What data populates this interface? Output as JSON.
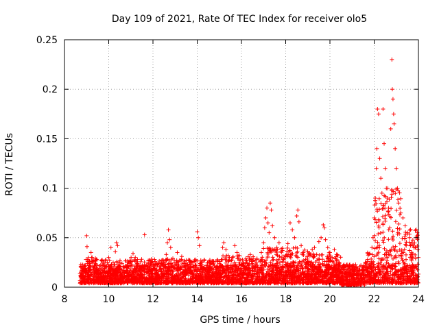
{
  "chart_data": {
    "type": "scatter",
    "title": "Day 109 of 2021, Rate Of TEC Index for receiver olo5",
    "xlabel": "GPS time / hours",
    "ylabel": "ROTI / TECUs",
    "xlim": [
      8,
      24
    ],
    "ylim": [
      0,
      0.25
    ],
    "xticks": [
      8,
      10,
      12,
      14,
      16,
      18,
      20,
      22,
      24
    ],
    "yticks": [
      0,
      0.05,
      0.1,
      0.15,
      0.2,
      0.25
    ],
    "ytick_labels": [
      "0",
      "0.05",
      "0.1",
      "0.15",
      "0.2",
      "0.25"
    ],
    "grid": true,
    "marker": "+",
    "color": "#ff0000",
    "points": [
      [
        8.75,
        0.012
      ],
      [
        8.8,
        0.018
      ],
      [
        8.85,
        0.009
      ],
      [
        8.9,
        0.022
      ],
      [
        8.95,
        0.015
      ],
      [
        9.0,
        0.052
      ],
      [
        9.02,
        0.041
      ],
      [
        9.05,
        0.028
      ],
      [
        9.1,
        0.012
      ],
      [
        9.2,
        0.035
      ],
      [
        9.25,
        0.03
      ],
      [
        9.3,
        0.018
      ],
      [
        9.4,
        0.024
      ],
      [
        9.5,
        0.014
      ],
      [
        9.6,
        0.019
      ],
      [
        9.7,
        0.027
      ],
      [
        9.8,
        0.011
      ],
      [
        9.9,
        0.021
      ],
      [
        10.0,
        0.03
      ],
      [
        10.1,
        0.04
      ],
      [
        10.2,
        0.025
      ],
      [
        10.3,
        0.036
      ],
      [
        10.35,
        0.045
      ],
      [
        10.4,
        0.042
      ],
      [
        10.5,
        0.018
      ],
      [
        10.6,
        0.024
      ],
      [
        10.7,
        0.015
      ],
      [
        10.8,
        0.02
      ],
      [
        10.9,
        0.013
      ],
      [
        11.0,
        0.026
      ],
      [
        11.1,
        0.034
      ],
      [
        11.2,
        0.03
      ],
      [
        11.3,
        0.028
      ],
      [
        11.4,
        0.02
      ],
      [
        11.5,
        0.017
      ],
      [
        11.62,
        0.053
      ],
      [
        11.7,
        0.022
      ],
      [
        11.8,
        0.016
      ],
      [
        11.9,
        0.025
      ],
      [
        12.0,
        0.019
      ],
      [
        12.1,
        0.014
      ],
      [
        12.2,
        0.023
      ],
      [
        12.3,
        0.018
      ],
      [
        12.4,
        0.027
      ],
      [
        12.5,
        0.021
      ],
      [
        12.6,
        0.033
      ],
      [
        12.65,
        0.045
      ],
      [
        12.7,
        0.058
      ],
      [
        12.75,
        0.048
      ],
      [
        12.8,
        0.04
      ],
      [
        12.9,
        0.029
      ],
      [
        13.0,
        0.022
      ],
      [
        13.1,
        0.035
      ],
      [
        13.2,
        0.027
      ],
      [
        13.3,
        0.031
      ],
      [
        13.4,
        0.024
      ],
      [
        13.5,
        0.016
      ],
      [
        13.6,
        0.021
      ],
      [
        13.7,
        0.014
      ],
      [
        13.8,
        0.025
      ],
      [
        13.9,
        0.018
      ],
      [
        14.0,
        0.056
      ],
      [
        14.05,
        0.05
      ],
      [
        14.1,
        0.042
      ],
      [
        14.2,
        0.025
      ],
      [
        14.3,
        0.017
      ],
      [
        14.4,
        0.022
      ],
      [
        14.5,
        0.015
      ],
      [
        14.6,
        0.02
      ],
      [
        14.7,
        0.026
      ],
      [
        14.8,
        0.013
      ],
      [
        14.9,
        0.019
      ],
      [
        15.0,
        0.024
      ],
      [
        15.1,
        0.028
      ],
      [
        15.15,
        0.04
      ],
      [
        15.2,
        0.045
      ],
      [
        15.3,
        0.038
      ],
      [
        15.4,
        0.032
      ],
      [
        15.5,
        0.022
      ],
      [
        15.6,
        0.03
      ],
      [
        15.7,
        0.042
      ],
      [
        15.8,
        0.035
      ],
      [
        15.9,
        0.027
      ],
      [
        16.0,
        0.019
      ],
      [
        16.1,
        0.024
      ],
      [
        16.2,
        0.029
      ],
      [
        16.3,
        0.018
      ],
      [
        16.4,
        0.033
      ],
      [
        16.5,
        0.026
      ],
      [
        16.6,
        0.021
      ],
      [
        16.7,
        0.028
      ],
      [
        16.8,
        0.015
      ],
      [
        16.9,
        0.035
      ],
      [
        17.0,
        0.045
      ],
      [
        17.05,
        0.06
      ],
      [
        17.1,
        0.07
      ],
      [
        17.15,
        0.08
      ],
      [
        17.2,
        0.065
      ],
      [
        17.25,
        0.055
      ],
      [
        17.3,
        0.085
      ],
      [
        17.35,
        0.078
      ],
      [
        17.4,
        0.062
      ],
      [
        17.5,
        0.05
      ],
      [
        17.6,
        0.04
      ],
      [
        17.7,
        0.045
      ],
      [
        17.8,
        0.036
      ],
      [
        17.9,
        0.028
      ],
      [
        18.0,
        0.032
      ],
      [
        18.1,
        0.044
      ],
      [
        18.2,
        0.065
      ],
      [
        18.3,
        0.058
      ],
      [
        18.4,
        0.05
      ],
      [
        18.5,
        0.072
      ],
      [
        18.55,
        0.078
      ],
      [
        18.6,
        0.066
      ],
      [
        18.7,
        0.042
      ],
      [
        18.8,
        0.035
      ],
      [
        18.9,
        0.028
      ],
      [
        19.0,
        0.026
      ],
      [
        19.1,
        0.032
      ],
      [
        19.2,
        0.038
      ],
      [
        19.3,
        0.04
      ],
      [
        19.4,
        0.033
      ],
      [
        19.5,
        0.046
      ],
      [
        19.6,
        0.05
      ],
      [
        19.7,
        0.063
      ],
      [
        19.75,
        0.06
      ],
      [
        19.8,
        0.048
      ],
      [
        19.9,
        0.04
      ],
      [
        20.0,
        0.035
      ],
      [
        20.1,
        0.03
      ],
      [
        20.2,
        0.038
      ],
      [
        20.3,
        0.033
      ],
      [
        20.4,
        0.025
      ],
      [
        20.5,
        0.02
      ],
      [
        20.6,
        0.018
      ],
      [
        20.7,
        0.014
      ],
      [
        20.8,
        0.016
      ],
      [
        20.9,
        0.012
      ],
      [
        21.0,
        0.018
      ],
      [
        21.1,
        0.014
      ],
      [
        21.2,
        0.02
      ],
      [
        21.3,
        0.016
      ],
      [
        21.4,
        0.022
      ],
      [
        21.5,
        0.02
      ],
      [
        21.6,
        0.025
      ],
      [
        21.7,
        0.028
      ],
      [
        21.8,
        0.034
      ],
      [
        21.9,
        0.04
      ],
      [
        21.95,
        0.05
      ],
      [
        22.0,
        0.07
      ],
      [
        22.05,
        0.09
      ],
      [
        22.1,
        0.12
      ],
      [
        22.12,
        0.14
      ],
      [
        22.15,
        0.18
      ],
      [
        22.2,
        0.175
      ],
      [
        22.25,
        0.13
      ],
      [
        22.3,
        0.11
      ],
      [
        22.35,
        0.095
      ],
      [
        22.4,
        0.18
      ],
      [
        22.45,
        0.145
      ],
      [
        22.5,
        0.12
      ],
      [
        22.55,
        0.1
      ],
      [
        22.6,
        0.09
      ],
      [
        22.65,
        0.08
      ],
      [
        22.7,
        0.06
      ],
      [
        22.75,
        0.16
      ],
      [
        22.8,
        0.23
      ],
      [
        22.82,
        0.2
      ],
      [
        22.85,
        0.19
      ],
      [
        22.88,
        0.175
      ],
      [
        22.9,
        0.165
      ],
      [
        22.95,
        0.14
      ],
      [
        23.0,
        0.12
      ],
      [
        23.05,
        0.1
      ],
      [
        23.1,
        0.085
      ],
      [
        23.2,
        0.075
      ],
      [
        23.3,
        0.07
      ],
      [
        23.4,
        0.062
      ],
      [
        23.5,
        0.055
      ],
      [
        23.6,
        0.05
      ],
      [
        23.7,
        0.045
      ],
      [
        23.8,
        0.04
      ],
      [
        23.9,
        0.05
      ],
      [
        23.95,
        0.055
      ],
      [
        24.0,
        0.03
      ]
    ],
    "density": {
      "note_free": true,
      "bands": [
        [
          8.7,
          9.5,
          0.004,
          0.03
        ],
        [
          9.5,
          11.0,
          0.004,
          0.028
        ],
        [
          11.0,
          13.0,
          0.004,
          0.03
        ],
        [
          13.0,
          15.0,
          0.004,
          0.028
        ],
        [
          15.0,
          17.0,
          0.004,
          0.032
        ],
        [
          17.0,
          19.0,
          0.004,
          0.04
        ],
        [
          19.0,
          20.5,
          0.004,
          0.035
        ],
        [
          20.5,
          21.6,
          0.002,
          0.022
        ],
        [
          21.6,
          22.0,
          0.004,
          0.035
        ],
        [
          22.0,
          23.2,
          0.004,
          0.1
        ],
        [
          23.2,
          24.0,
          0.004,
          0.06
        ]
      ]
    }
  }
}
